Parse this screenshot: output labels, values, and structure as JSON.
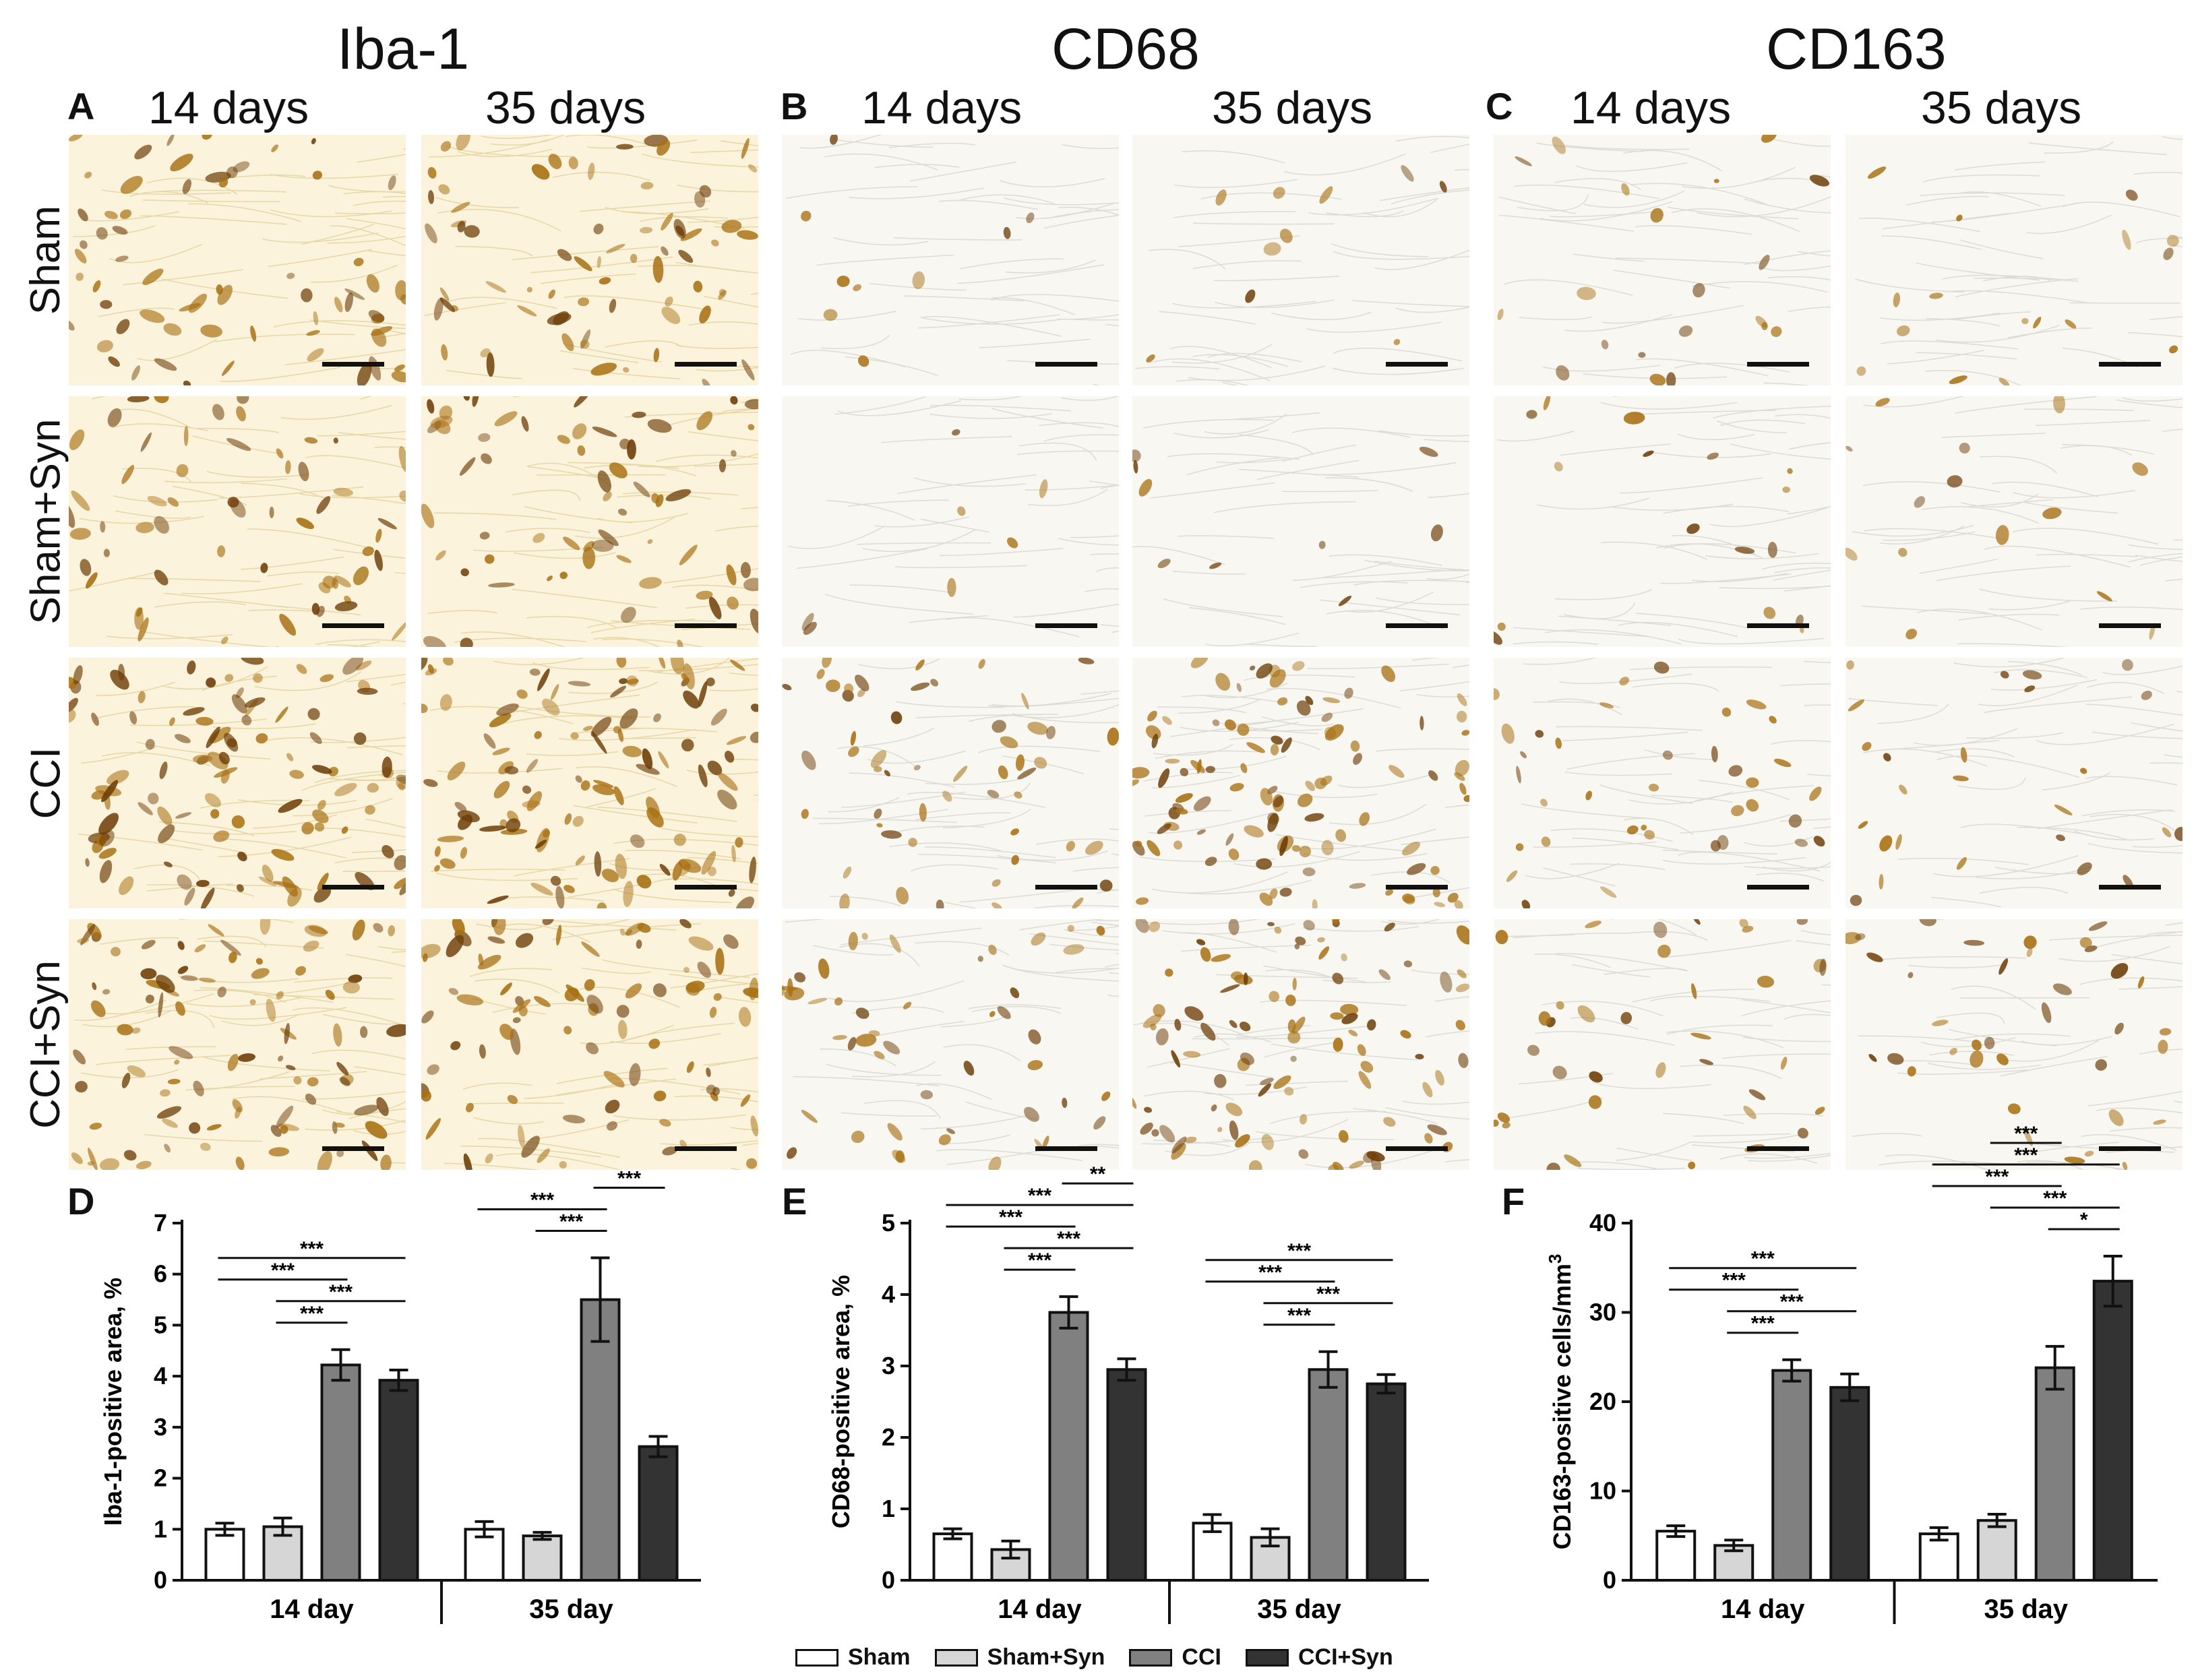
{
  "figure": {
    "panel_letters": {
      "A": "A",
      "B": "B",
      "C": "C",
      "D": "D",
      "E": "E",
      "F": "F"
    },
    "stain_titles": [
      "Iba-1",
      "CD68",
      "CD163"
    ],
    "time_headings": [
      "14 days",
      "35 days"
    ],
    "row_labels": [
      "Sham",
      "Sham+Syn",
      "CCI",
      "CCI+Syn"
    ],
    "micrograph_density": {
      "Iba-1": {
        "14 days": [
          0.55,
          0.5,
          0.95,
          0.85
        ],
        "35 days": [
          0.6,
          0.55,
          1.0,
          0.75
        ]
      },
      "CD68": {
        "14 days": [
          0.05,
          0.04,
          0.45,
          0.4
        ],
        "35 days": [
          0.06,
          0.05,
          0.9,
          0.85
        ]
      },
      "CD163": {
        "14 days": [
          0.15,
          0.12,
          0.3,
          0.3
        ],
        "35 days": [
          0.12,
          0.1,
          0.2,
          0.3
        ]
      }
    },
    "micrograph_colors": {
      "background": "#fbf7ea",
      "stain": "#a87012",
      "stain_dark": "#6e3e08"
    }
  },
  "legend": {
    "items": [
      {
        "label": "Sham",
        "color": "#ffffff"
      },
      {
        "label": "Sham+Syn",
        "color": "#d6d6d6"
      },
      {
        "label": "CCI",
        "color": "#808080"
      },
      {
        "label": "CCI+Syn",
        "color": "#333333"
      }
    ]
  },
  "chart_data": [
    {
      "type": "bar",
      "panel": "D",
      "title": "",
      "ylabel": "Iba-1-positive area, %",
      "xlabel": "",
      "categories": [
        "14 day",
        "35 day"
      ],
      "ylim": [
        0,
        7
      ],
      "yticks": [
        0,
        1,
        2,
        3,
        4,
        5,
        6,
        7
      ],
      "series": [
        {
          "name": "Sham",
          "values": [
            1.0,
            1.0
          ],
          "errors": [
            0.12,
            0.15
          ]
        },
        {
          "name": "Sham+Syn",
          "values": [
            1.05,
            0.87
          ],
          "errors": [
            0.17,
            0.07
          ]
        },
        {
          "name": "CCI",
          "values": [
            4.22,
            5.5
          ],
          "errors": [
            0.3,
            0.82
          ]
        },
        {
          "name": "CCI+Syn",
          "values": [
            3.92,
            2.62
          ],
          "errors": [
            0.2,
            0.2
          ]
        }
      ],
      "significance": [
        {
          "group": 0,
          "from": 1,
          "to": 2,
          "label": "***"
        },
        {
          "group": 0,
          "from": 1,
          "to": 3,
          "label": "***"
        },
        {
          "group": 0,
          "from": 0,
          "to": 2,
          "label": "***"
        },
        {
          "group": 0,
          "from": 0,
          "to": 3,
          "label": "***"
        },
        {
          "group": 1,
          "from": 1,
          "to": 2,
          "label": "***"
        },
        {
          "group": 1,
          "from": 0,
          "to": 2,
          "label": "***"
        },
        {
          "group": 1,
          "from": 2,
          "to": 3,
          "label": "***"
        }
      ]
    },
    {
      "type": "bar",
      "panel": "E",
      "title": "",
      "ylabel": "CD68-positive area, %",
      "xlabel": "",
      "categories": [
        "14 day",
        "35 day"
      ],
      "ylim": [
        0,
        5
      ],
      "yticks": [
        0,
        1,
        2,
        3,
        4,
        5
      ],
      "series": [
        {
          "name": "Sham",
          "values": [
            0.65,
            0.8
          ],
          "errors": [
            0.07,
            0.12
          ]
        },
        {
          "name": "Sham+Syn",
          "values": [
            0.43,
            0.6
          ],
          "errors": [
            0.12,
            0.12
          ]
        },
        {
          "name": "CCI",
          "values": [
            3.75,
            2.95
          ],
          "errors": [
            0.22,
            0.25
          ]
        },
        {
          "name": "CCI+Syn",
          "values": [
            2.95,
            2.75
          ],
          "errors": [
            0.15,
            0.13
          ]
        }
      ],
      "significance": [
        {
          "group": 0,
          "from": 1,
          "to": 2,
          "label": "***"
        },
        {
          "group": 0,
          "from": 1,
          "to": 3,
          "label": "***"
        },
        {
          "group": 0,
          "from": 0,
          "to": 2,
          "label": "***"
        },
        {
          "group": 0,
          "from": 0,
          "to": 3,
          "label": "***"
        },
        {
          "group": 0,
          "from": 2,
          "to": 3,
          "label": "**"
        },
        {
          "group": 1,
          "from": 1,
          "to": 2,
          "label": "***"
        },
        {
          "group": 1,
          "from": 1,
          "to": 3,
          "label": "***"
        },
        {
          "group": 1,
          "from": 0,
          "to": 2,
          "label": "***"
        },
        {
          "group": 1,
          "from": 0,
          "to": 3,
          "label": "***"
        }
      ]
    },
    {
      "type": "bar",
      "panel": "F",
      "title": "",
      "ylabel": "CD163-positive cells/mm",
      "ylabel_superscript": "3",
      "xlabel": "",
      "categories": [
        "14 day",
        "35 day"
      ],
      "ylim": [
        0,
        40
      ],
      "yticks": [
        0,
        10,
        20,
        30,
        40
      ],
      "series": [
        {
          "name": "Sham",
          "values": [
            5.5,
            5.2
          ],
          "errors": [
            0.6,
            0.7
          ]
        },
        {
          "name": "Sham+Syn",
          "values": [
            3.9,
            6.7
          ],
          "errors": [
            0.6,
            0.7
          ]
        },
        {
          "name": "CCI",
          "values": [
            23.5,
            23.8
          ],
          "errors": [
            1.2,
            2.4
          ]
        },
        {
          "name": "CCI+Syn",
          "values": [
            21.6,
            33.5
          ],
          "errors": [
            1.5,
            2.8
          ]
        }
      ],
      "significance": [
        {
          "group": 0,
          "from": 1,
          "to": 2,
          "label": "***"
        },
        {
          "group": 0,
          "from": 1,
          "to": 3,
          "label": "***"
        },
        {
          "group": 0,
          "from": 0,
          "to": 2,
          "label": "***"
        },
        {
          "group": 0,
          "from": 0,
          "to": 3,
          "label": "***"
        },
        {
          "group": 1,
          "from": 2,
          "to": 3,
          "label": "*"
        },
        {
          "group": 1,
          "from": 1,
          "to": 3,
          "label": "***"
        },
        {
          "group": 1,
          "from": 0,
          "to": 2,
          "label": "***"
        },
        {
          "group": 1,
          "from": 0,
          "to": 3,
          "label": "***"
        },
        {
          "group": 1,
          "from": 1,
          "to": 2,
          "label": "***"
        }
      ]
    }
  ]
}
